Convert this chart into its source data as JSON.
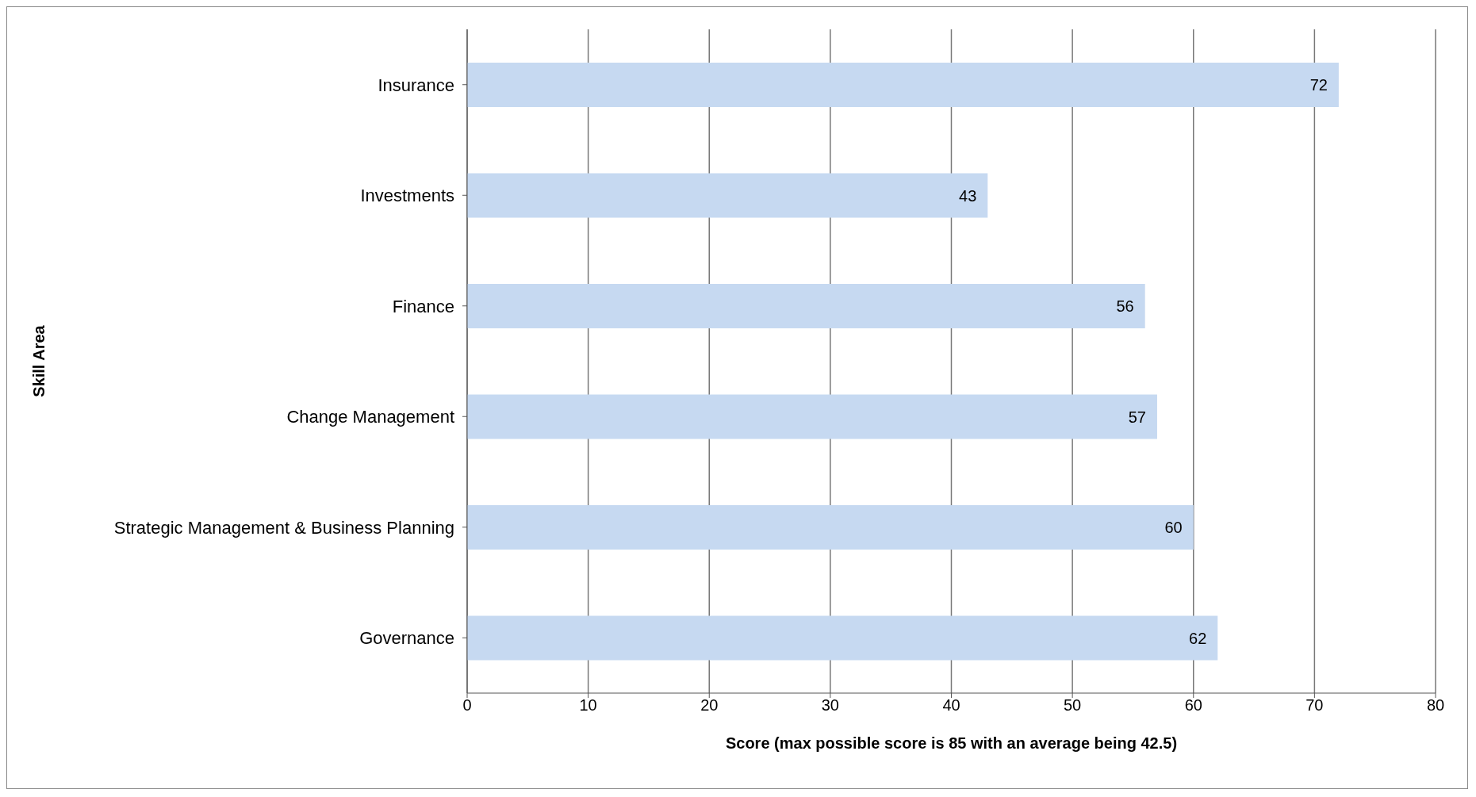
{
  "chart_data": {
    "type": "bar",
    "orientation": "horizontal",
    "categories": [
      "Insurance",
      "Investments",
      "Finance",
      "Change Management",
      "Strategic Management & Business Planning",
      "Governance"
    ],
    "values": [
      72,
      43,
      56,
      57,
      60,
      62
    ],
    "color": "#c6d9f1",
    "xlim": [
      0,
      80
    ],
    "xticks": [
      0,
      10,
      20,
      30,
      40,
      50,
      60,
      70,
      80
    ],
    "xlabel": "Score (max possible score is 85 with an average being 42.5)",
    "ylabel": "Skill Area",
    "grid": "x",
    "data_labels": true
  }
}
